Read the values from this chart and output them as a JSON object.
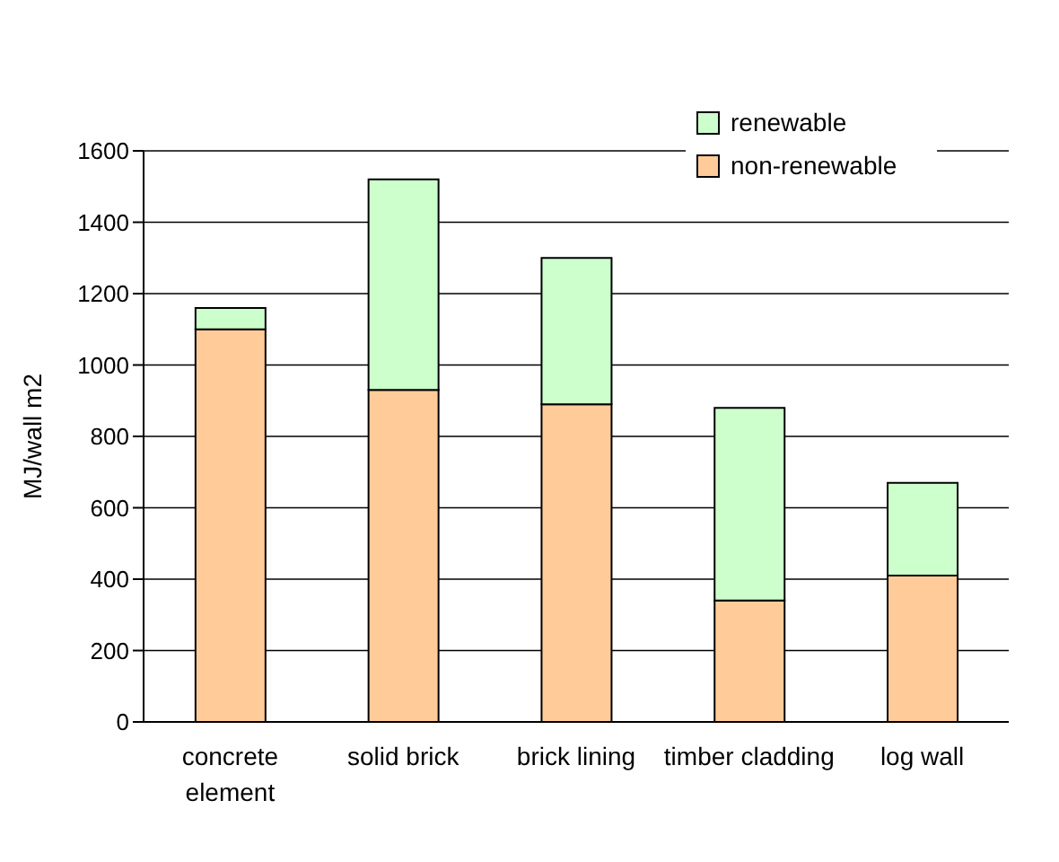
{
  "chart_data": {
    "type": "bar",
    "stacked": true,
    "ylabel": "MJ/wall m2",
    "categories": [
      "concrete element",
      "solid brick",
      "brick lining",
      "timber cladding",
      "log wall"
    ],
    "series": [
      {
        "name": "non-renewable",
        "color": "#ffcc99",
        "values": [
          1100,
          930,
          890,
          340,
          410
        ]
      },
      {
        "name": "renewable",
        "color": "#ccffcc",
        "values": [
          60,
          590,
          410,
          540,
          260
        ]
      }
    ],
    "ylim": [
      0,
      1600
    ],
    "yticks": [
      0,
      200,
      400,
      600,
      800,
      1000,
      1200,
      1400,
      1600
    ],
    "grid": "y",
    "legend": "top right"
  }
}
